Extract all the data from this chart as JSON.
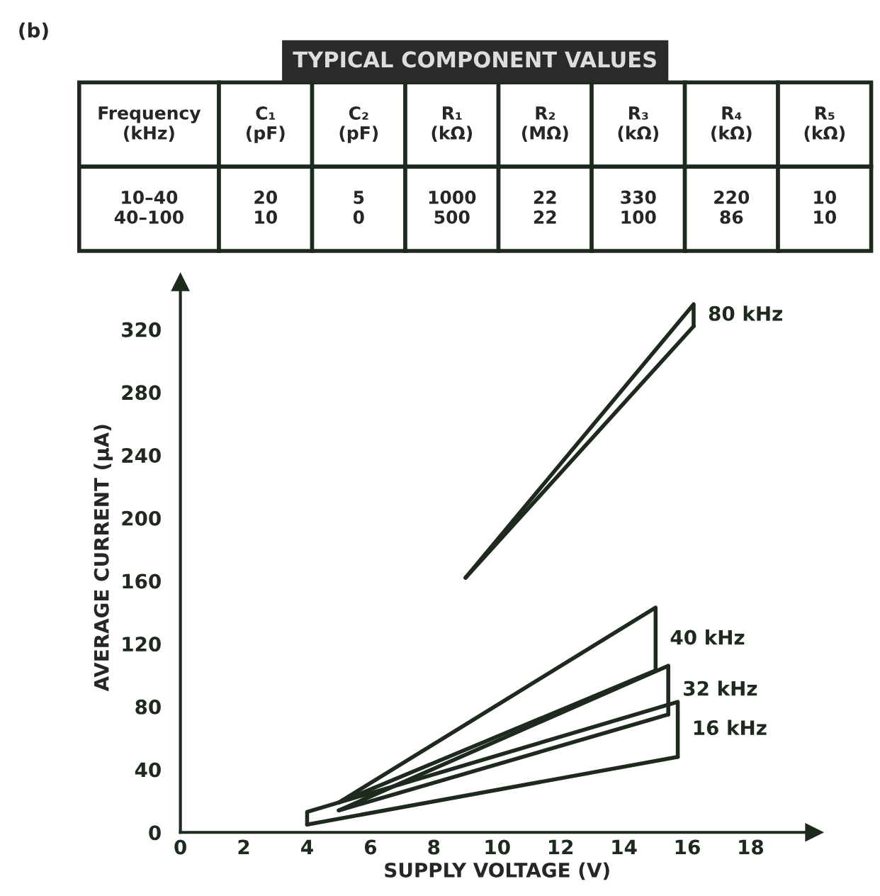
{
  "chart_data": [
    {
      "type": "other",
      "title": "TYPICAL COMPONENT VALUES",
      "subtitle": "(b)",
      "annotations": [
        "Frequency\n(kHz)",
        "C₁\n(pF)",
        "C₂\n(pF)",
        "R₁\n(kΩ)",
        "R₂\n(MΩ)",
        "R₃\n(kΩ)",
        "R₄\n(kΩ)",
        "R₅\n(kΩ)",
        "10–40\n40–100",
        "20\n10",
        "5\n0",
        "1000\n500",
        "22\n22",
        "330\n100",
        "220\n86",
        "10\n10"
      ]
    },
    {
      "type": "line",
      "xlabel": "SUPPLY VOLTAGE (V)",
      "ylabel": "AVERAGE CURRENT (μA)",
      "xlim": [
        0,
        20
      ],
      "ylim": [
        0,
        350
      ],
      "xticks": [
        0,
        2,
        4,
        6,
        8,
        10,
        12,
        14,
        16,
        18
      ],
      "yticks": [
        0,
        40,
        80,
        120,
        160,
        200,
        240,
        280,
        320
      ],
      "series": [
        {
          "name": "80 kHz",
          "color": "#1e2a1e",
          "x": [
            9,
            16.2,
            16.2
          ],
          "values": [
            162,
            336,
            322
          ]
        },
        {
          "color": "#1e2a1e",
          "x": [
            9,
            16.2
          ],
          "values": [
            162,
            322
          ]
        },
        {
          "name": "40 kHz",
          "color": "#1e2a1e",
          "x": [
            5,
            15,
            15
          ],
          "values": [
            19,
            143,
            103
          ]
        },
        {
          "color": "#1e2a1e",
          "x": [
            5,
            15
          ],
          "values": [
            19,
            103
          ]
        },
        {
          "name": "32 kHz",
          "color": "#1e2a1e",
          "x": [
            5,
            15.4,
            15.4
          ],
          "values": [
            14,
            106,
            75
          ]
        },
        {
          "color": "#1e2a1e",
          "x": [
            5,
            15.4
          ],
          "values": [
            14,
            75
          ]
        },
        {
          "name": "16 kHz",
          "color": "#1e2a1e",
          "x": [
            4,
            4,
            15.7,
            15.7
          ],
          "values": [
            5,
            13,
            83,
            48
          ]
        },
        {
          "color": "#1e2a1e",
          "x": [
            4,
            15.7
          ],
          "values": [
            5,
            48
          ]
        }
      ]
    }
  ]
}
